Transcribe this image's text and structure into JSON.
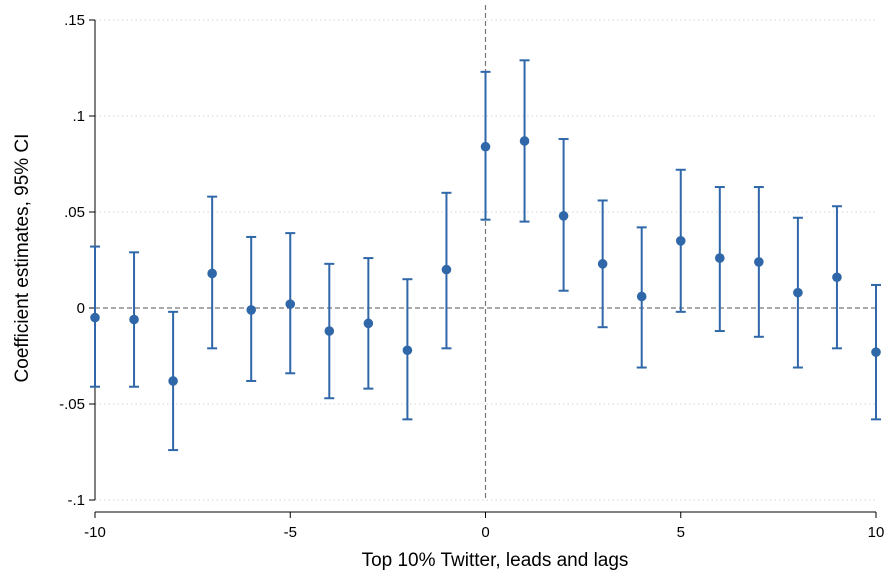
{
  "chart_data": {
    "type": "scatter",
    "subtype": "coefficient-plot-with-95ci",
    "xlabel": "Top 10% Twitter, leads and lags",
    "ylabel": "Coefficient estimates, 95% CI",
    "xlim": [
      -10,
      10
    ],
    "ylim": [
      -0.1,
      0.15
    ],
    "x_ticks": [
      -10,
      -5,
      0,
      5,
      10
    ],
    "x_tick_labels": [
      "-10",
      "-5",
      "0",
      "5",
      "10"
    ],
    "y_ticks": [
      -0.1,
      -0.05,
      0,
      0.05,
      0.1,
      0.15
    ],
    "y_tick_labels": [
      "-.1",
      "-.05",
      "0",
      ".05",
      ".1",
      ".15"
    ],
    "grid": "horizontal dotted",
    "reference_lines": {
      "horizontal_dashed_at_y": 0,
      "vertical_dashed_at_x": 0
    },
    "colors": {
      "marker": "#2f67a9",
      "ci": "#2f67a9",
      "reference": "#777777",
      "grid": "#d6d6d6"
    },
    "points": [
      {
        "x": -10,
        "estimate": -0.005,
        "ci_low": -0.041,
        "ci_high": 0.032
      },
      {
        "x": -9,
        "estimate": -0.006,
        "ci_low": -0.041,
        "ci_high": 0.029
      },
      {
        "x": -8,
        "estimate": -0.038,
        "ci_low": -0.074,
        "ci_high": -0.002
      },
      {
        "x": -7,
        "estimate": 0.018,
        "ci_low": -0.021,
        "ci_high": 0.058
      },
      {
        "x": -6,
        "estimate": -0.001,
        "ci_low": -0.038,
        "ci_high": 0.037
      },
      {
        "x": -5,
        "estimate": 0.002,
        "ci_low": -0.034,
        "ci_high": 0.039
      },
      {
        "x": -4,
        "estimate": -0.012,
        "ci_low": -0.047,
        "ci_high": 0.023
      },
      {
        "x": -3,
        "estimate": -0.008,
        "ci_low": -0.042,
        "ci_high": 0.026
      },
      {
        "x": -2,
        "estimate": -0.022,
        "ci_low": -0.058,
        "ci_high": 0.015
      },
      {
        "x": -1,
        "estimate": 0.02,
        "ci_low": -0.021,
        "ci_high": 0.06
      },
      {
        "x": 0,
        "estimate": 0.084,
        "ci_low": 0.046,
        "ci_high": 0.123
      },
      {
        "x": 1,
        "estimate": 0.087,
        "ci_low": 0.045,
        "ci_high": 0.129
      },
      {
        "x": 2,
        "estimate": 0.048,
        "ci_low": 0.009,
        "ci_high": 0.088
      },
      {
        "x": 3,
        "estimate": 0.023,
        "ci_low": -0.01,
        "ci_high": 0.056
      },
      {
        "x": 4,
        "estimate": 0.006,
        "ci_low": -0.031,
        "ci_high": 0.042
      },
      {
        "x": 5,
        "estimate": 0.035,
        "ci_low": -0.002,
        "ci_high": 0.072
      },
      {
        "x": 6,
        "estimate": 0.026,
        "ci_low": -0.012,
        "ci_high": 0.063
      },
      {
        "x": 7,
        "estimate": 0.024,
        "ci_low": -0.015,
        "ci_high": 0.063
      },
      {
        "x": 8,
        "estimate": 0.008,
        "ci_low": -0.031,
        "ci_high": 0.047
      },
      {
        "x": 9,
        "estimate": 0.016,
        "ci_low": -0.021,
        "ci_high": 0.053
      },
      {
        "x": 10,
        "estimate": -0.023,
        "ci_low": -0.058,
        "ci_high": 0.012
      }
    ]
  }
}
